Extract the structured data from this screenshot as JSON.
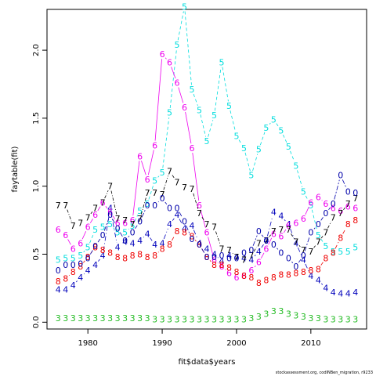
{
  "chart_data": {
    "type": "line",
    "xlabel": "fit$data$years",
    "ylabel": "faytable(fit)",
    "xlim": [
      1974.5,
      2017.5
    ],
    "ylim": [
      -0.05,
      2.3
    ],
    "x_ticks": [
      1980,
      1990,
      2000,
      2010
    ],
    "y_ticks": [
      0.0,
      0.5,
      1.0,
      1.5,
      2.0
    ],
    "x_tick_labels": [
      "1980",
      "1990",
      "2000",
      "2010"
    ],
    "y_tick_labels": [
      "0.0",
      "0.5",
      "1.0",
      "1.5",
      "2.0"
    ],
    "grid": false,
    "legend": "none",
    "series": [
      {
        "label": "3",
        "color": "#22bb22",
        "x": [
          1976,
          1977,
          1978,
          1979,
          1980,
          1981,
          1982,
          1983,
          1984,
          1985,
          1986,
          1987,
          1988,
          1989,
          1990,
          1991,
          1992,
          1993,
          1994,
          1995,
          1996,
          1997,
          1998,
          1999,
          2000,
          2001,
          2002,
          2003,
          2004,
          2005,
          2006,
          2007,
          2008,
          2009,
          2010,
          2011,
          2012,
          2013,
          2014,
          2015,
          2016
        ],
        "values": [
          0.03,
          0.03,
          0.03,
          0.03,
          0.03,
          0.03,
          0.03,
          0.03,
          0.03,
          0.03,
          0.03,
          0.03,
          0.03,
          0.02,
          0.02,
          0.02,
          0.02,
          0.02,
          0.02,
          0.02,
          0.02,
          0.02,
          0.02,
          0.02,
          0.02,
          0.02,
          0.03,
          0.04,
          0.06,
          0.08,
          0.08,
          0.06,
          0.05,
          0.04,
          0.03,
          0.03,
          0.02,
          0.02,
          0.02,
          0.02,
          0.02
        ]
      },
      {
        "label": "4",
        "color": "#0000bb",
        "x": [
          1976,
          1977,
          1978,
          1979,
          1980,
          1981,
          1982,
          1983,
          1984,
          1985,
          1986,
          1987,
          1988,
          1989,
          1990,
          1991,
          1992,
          1993,
          1994,
          1995,
          1996,
          1997,
          1998,
          1999,
          2000,
          2001,
          2002,
          2003,
          2004,
          2005,
          2006,
          2007,
          2008,
          2009,
          2010,
          2011,
          2012,
          2013,
          2014,
          2015,
          2016
        ],
        "values": [
          0.24,
          0.24,
          0.27,
          0.33,
          0.38,
          0.42,
          0.49,
          0.84,
          0.55,
          0.59,
          0.58,
          0.6,
          0.65,
          0.57,
          0.58,
          0.72,
          0.79,
          0.69,
          0.71,
          0.58,
          0.54,
          0.5,
          0.45,
          0.49,
          0.48,
          0.47,
          0.46,
          0.52,
          0.6,
          0.81,
          0.78,
          0.72,
          0.58,
          0.46,
          0.34,
          0.31,
          0.25,
          0.22,
          0.21,
          0.21,
          0.22
        ]
      },
      {
        "label": "5",
        "color": "#00dddd",
        "x": [
          1976,
          1977,
          1978,
          1979,
          1980,
          1981,
          1982,
          1983,
          1984,
          1985,
          1986,
          1987,
          1988,
          1989,
          1990,
          1991,
          1992,
          1993,
          1994,
          1995,
          1996,
          1997,
          1998,
          1999,
          2000,
          2001,
          2002,
          2003,
          2004,
          2005,
          2006,
          2007,
          2008,
          2009,
          2010,
          2011,
          2012,
          2013,
          2014,
          2015,
          2016
        ],
        "values": [
          0.46,
          0.47,
          0.47,
          0.49,
          0.55,
          0.68,
          0.7,
          0.72,
          0.66,
          0.66,
          0.71,
          0.82,
          0.87,
          1.04,
          1.1,
          1.54,
          2.04,
          2.32,
          1.71,
          1.56,
          1.33,
          1.52,
          1.91,
          1.59,
          1.37,
          1.28,
          1.08,
          1.27,
          1.43,
          1.49,
          1.41,
          1.29,
          1.15,
          0.96,
          0.86,
          0.64,
          0.56,
          0.52,
          0.52,
          0.52,
          0.55
        ]
      },
      {
        "label": "6",
        "color": "#ee00ee",
        "x": [
          1976,
          1977,
          1978,
          1979,
          1980,
          1981,
          1982,
          1983,
          1984,
          1985,
          1986,
          1987,
          1988,
          1989,
          1990,
          1991,
          1992,
          1993,
          1994,
          1995,
          1996,
          1997,
          1998,
          1999,
          2000,
          2001,
          2002,
          2003,
          2004,
          2005,
          2006,
          2007,
          2008,
          2009,
          2010,
          2011,
          2012,
          2013,
          2014,
          2015,
          2016
        ],
        "values": [
          0.68,
          0.64,
          0.54,
          0.58,
          0.7,
          0.79,
          0.88,
          0.81,
          0.73,
          0.73,
          0.75,
          1.22,
          1.05,
          1.3,
          1.97,
          1.91,
          1.76,
          1.58,
          1.28,
          0.86,
          0.66,
          0.46,
          0.41,
          0.36,
          0.33,
          0.34,
          0.38,
          0.44,
          0.54,
          0.65,
          0.63,
          0.71,
          0.73,
          0.76,
          0.88,
          0.92,
          0.87,
          0.84,
          0.82,
          0.85,
          0.84
        ]
      },
      {
        "label": "7",
        "color": "#000000",
        "x": [
          1976,
          1977,
          1978,
          1979,
          1980,
          1981,
          1982,
          1983,
          1984,
          1985,
          1986,
          1987,
          1988,
          1989,
          1990,
          1991,
          1992,
          1993,
          1994,
          1995,
          1996,
          1997,
          1998,
          1999,
          2000,
          2001,
          2002,
          2003,
          2004,
          2005,
          2006,
          2007,
          2008,
          2009,
          2010,
          2011,
          2012,
          2013,
          2014,
          2015,
          2016
        ],
        "values": [
          0.86,
          0.86,
          0.71,
          0.73,
          0.77,
          0.84,
          0.88,
          1.0,
          0.76,
          0.75,
          0.72,
          0.76,
          0.95,
          0.95,
          0.94,
          1.11,
          1.03,
          0.99,
          0.98,
          0.8,
          0.72,
          0.7,
          0.54,
          0.53,
          0.48,
          0.46,
          0.49,
          0.58,
          0.6,
          0.67,
          0.68,
          0.68,
          0.59,
          0.53,
          0.52,
          0.59,
          0.66,
          0.77,
          0.8,
          0.87,
          0.91
        ]
      },
      {
        "label": "8",
        "color": "#ee0000",
        "x": [
          1976,
          1977,
          1978,
          1979,
          1980,
          1981,
          1982,
          1983,
          1984,
          1985,
          1986,
          1987,
          1988,
          1989,
          1990,
          1991,
          1992,
          1993,
          1994,
          1995,
          1996,
          1997,
          1998,
          1999,
          2000,
          2001,
          2002,
          2003,
          2004,
          2005,
          2006,
          2007,
          2008,
          2009,
          2010,
          2011,
          2012,
          2013,
          2014,
          2015,
          2016
        ],
        "values": [
          0.3,
          0.32,
          0.37,
          0.41,
          0.48,
          0.55,
          0.53,
          0.51,
          0.48,
          0.47,
          0.49,
          0.5,
          0.48,
          0.49,
          0.54,
          0.57,
          0.67,
          0.66,
          0.63,
          0.57,
          0.48,
          0.42,
          0.42,
          0.4,
          0.37,
          0.34,
          0.33,
          0.29,
          0.31,
          0.33,
          0.35,
          0.35,
          0.36,
          0.37,
          0.38,
          0.39,
          0.47,
          0.51,
          0.62,
          0.72,
          0.75
        ]
      },
      {
        "label": "0",
        "color": "#0000aa",
        "x": [
          1976,
          1977,
          1978,
          1979,
          1980,
          1981,
          1982,
          1983,
          1984,
          1985,
          1986,
          1987,
          1988,
          1989,
          1990,
          1991,
          1992,
          1993,
          1994,
          1995,
          1996,
          1997,
          1998,
          1999,
          2000,
          2001,
          2002,
          2003,
          2004,
          2005,
          2006,
          2007,
          2008,
          2009,
          2010,
          2011,
          2012,
          2013,
          2014,
          2015,
          2016
        ],
        "values": [
          0.38,
          0.42,
          0.42,
          0.43,
          0.47,
          0.56,
          0.64,
          0.79,
          0.69,
          0.6,
          0.66,
          0.74,
          0.86,
          0.86,
          0.91,
          0.84,
          0.84,
          0.74,
          0.61,
          0.57,
          0.48,
          0.48,
          0.49,
          0.47,
          0.47,
          0.51,
          0.53,
          0.67,
          0.6,
          0.57,
          0.51,
          0.47,
          0.41,
          0.49,
          0.66,
          0.72,
          0.8,
          0.87,
          1.08,
          0.96,
          0.95
        ]
      }
    ]
  },
  "footer": {
    "credit": "stockassessment.org, codINBen_migration, r9233"
  }
}
